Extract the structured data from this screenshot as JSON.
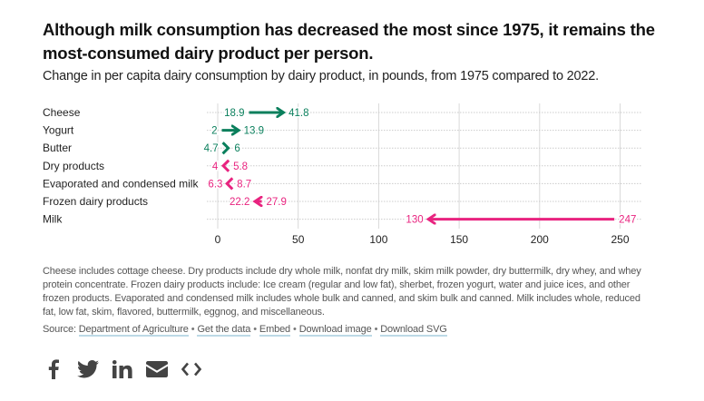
{
  "title": "Although milk consumption has decreased the most since 1975, it remains the most-consumed dairy product per person.",
  "subtitle": "Change in per capita dairy consumption by dairy product, in pounds, from 1975 compared to 2022.",
  "colors": {
    "increase": "#0a7f5c",
    "decrease": "#e8237f",
    "gridline": "#d9d9d9",
    "dotted": "#cccccc"
  },
  "chart_data": {
    "type": "arrow-dot-plot",
    "title": "Although milk consumption has decreased the most since 1975, it remains the most-consumed dairy product per person.",
    "subtitle": "Change in per capita dairy consumption by dairy product, in pounds, from 1975 compared to 2022.",
    "xlabel": "",
    "ylabel": "",
    "xlim": [
      0,
      250
    ],
    "xticks": [
      0,
      50,
      100,
      150,
      200,
      250
    ],
    "grid": true,
    "categories": [
      "Cheese",
      "Yogurt",
      "Butter",
      "Dry products",
      "Evaporated and condensed milk",
      "Frozen dairy products",
      "Milk"
    ],
    "series": [
      {
        "name": "1975",
        "values": [
          18.9,
          2,
          4.7,
          5.8,
          8.7,
          27.9,
          247
        ]
      },
      {
        "name": "2022",
        "values": [
          41.8,
          13.9,
          6,
          4,
          6.3,
          22.2,
          130
        ]
      }
    ],
    "labels_1975": [
      "18.9",
      "2",
      "4.7",
      "5.8",
      "8.7",
      "27.9",
      "247"
    ],
    "labels_2022": [
      "41.8",
      "13.9",
      "6",
      "4",
      "6.3",
      "22.2",
      "130"
    ]
  },
  "notes": "Cheese includes cottage cheese. Dry products include dry whole milk, nonfat dry milk, skim milk powder, dry buttermilk, dry whey, and whey protein concentrate. Frozen dairy products include: Ice cream (regular and low fat), sherbet, frozen yogurt, water and juice ices, and other frozen products. Evaporated and condensed milk includes whole bulk and canned, and skim bulk and canned. Milk includes whole, reduced fat, low fat, skim, flavored, buttermilk, eggnog, and miscellaneous.",
  "source": {
    "prefix": "Source: ",
    "links": [
      "Department of Agriculture",
      "Get the data",
      "Embed",
      "Download image",
      "Download SVG"
    ],
    "separator": "•"
  },
  "share": {
    "icons": [
      "facebook-icon",
      "twitter-icon",
      "linkedin-icon",
      "email-icon",
      "embed-code-icon"
    ]
  }
}
